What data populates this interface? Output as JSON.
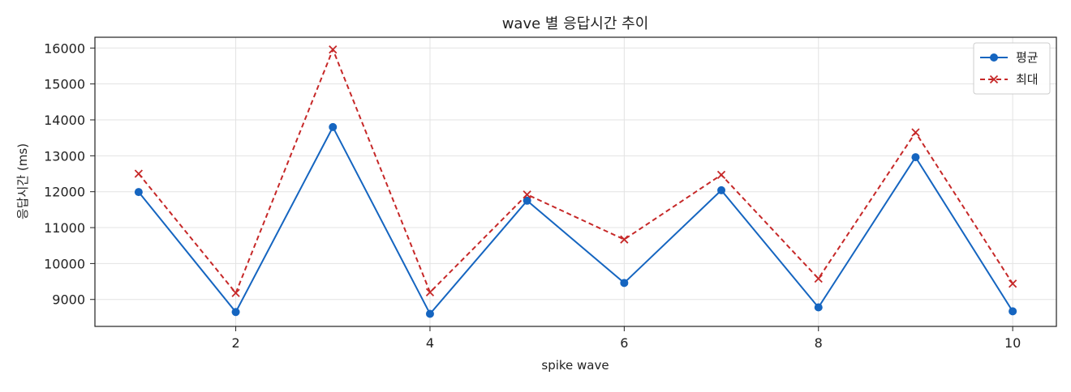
{
  "chart_data": {
    "type": "line",
    "title": "wave 별 응답시간 추이",
    "xlabel": "spike wave",
    "ylabel": "응답시간 (ms)",
    "x": [
      1,
      2,
      3,
      4,
      5,
      6,
      7,
      8,
      9,
      10
    ],
    "xlim": [
      0.55,
      10.45
    ],
    "ylim": [
      8250,
      16300
    ],
    "xticks": [
      2,
      4,
      6,
      8,
      10
    ],
    "yticks": [
      9000,
      10000,
      11000,
      12000,
      13000,
      14000,
      15000,
      16000
    ],
    "grid": true,
    "legend_position": "top-right",
    "series": [
      {
        "name": "평균",
        "color": "#1565c0",
        "line_style": "solid",
        "marker": "circle",
        "values": [
          11990,
          8650,
          13800,
          8600,
          11750,
          9460,
          12040,
          8780,
          12960,
          8670
        ]
      },
      {
        "name": "최대",
        "color": "#c62828",
        "line_style": "dashed",
        "marker": "x",
        "values": [
          12500,
          9180,
          15960,
          9200,
          11920,
          10670,
          12470,
          9580,
          13650,
          9440
        ]
      }
    ]
  }
}
